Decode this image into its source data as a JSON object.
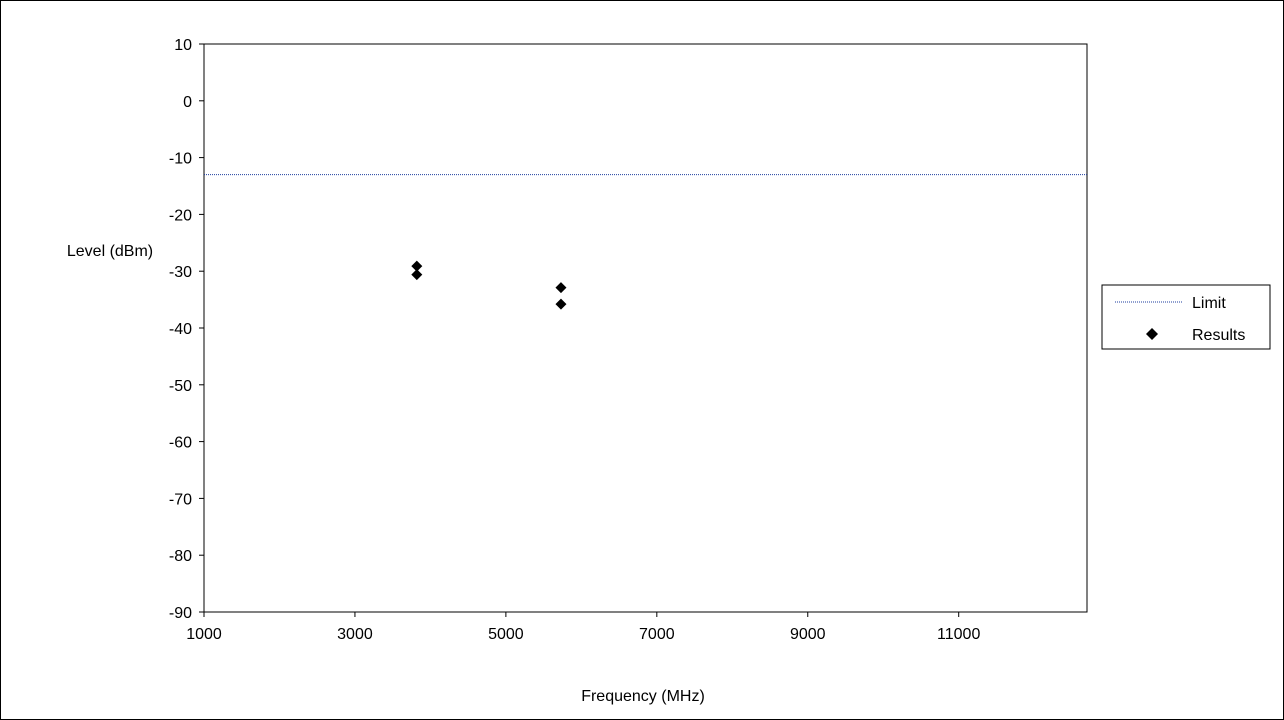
{
  "chart_data": {
    "type": "scatter",
    "title": "",
    "xlabel": "Frequency (MHz)",
    "ylabel": "Level (dBm)",
    "xlim": [
      1000,
      12700
    ],
    "ylim": [
      -90,
      10
    ],
    "x_ticks": [
      1000,
      3000,
      5000,
      7000,
      9000,
      11000
    ],
    "y_ticks": [
      10,
      0,
      -10,
      -20,
      -30,
      -40,
      -50,
      -60,
      -70,
      -80,
      -90
    ],
    "grid": false,
    "legend_position": "right",
    "series": [
      {
        "name": "Limit",
        "kind": "line",
        "style": "dotted",
        "color": "#1f3f9f",
        "points": [
          {
            "x": 1000,
            "y": -13
          },
          {
            "x": 12700,
            "y": -13
          }
        ]
      },
      {
        "name": "Results",
        "kind": "marker",
        "marker": "diamond",
        "color": "#000000",
        "points": [
          {
            "x": 3820,
            "y": -29.1
          },
          {
            "x": 3820,
            "y": -30.6
          },
          {
            "x": 5730,
            "y": -32.9
          },
          {
            "x": 5730,
            "y": -35.8
          }
        ]
      }
    ]
  }
}
